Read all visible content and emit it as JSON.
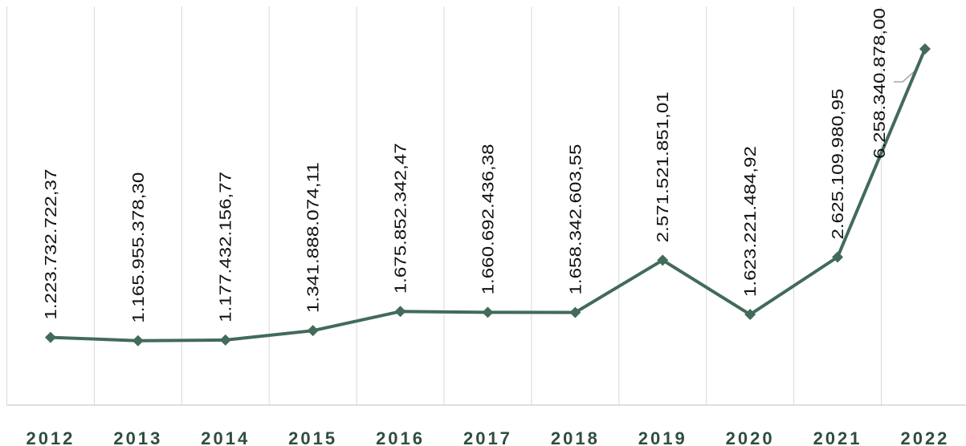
{
  "chart_data": {
    "type": "line",
    "categories": [
      "2012",
      "2013",
      "2014",
      "2015",
      "2016",
      "2017",
      "2018",
      "2019",
      "2020",
      "2021",
      "2022"
    ],
    "series": [
      {
        "color": "#426b59",
        "values": [
          1223732722.37,
          1165955378.3,
          1177432156.77,
          1341888074.11,
          1675852342.47,
          1660692436.38,
          1658342603.55,
          2571521851.01,
          1623221484.92,
          2625109980.95,
          6258340878.0
        ],
        "value_labels": [
          "1.223.732.722,37",
          "1.165.955.378,30",
          "1.177.432.156,77",
          "1.341.888.074,11",
          "1.675.852.342,47",
          "1.660.692.436,38",
          "1.658.342.603,55",
          "2.571.521.851,01",
          "1.623.221.484,92",
          "2.625.109.980,95",
          "6.258.340.878,00"
        ]
      }
    ],
    "ylim": [
      0,
      7000000000
    ],
    "grid": true
  }
}
